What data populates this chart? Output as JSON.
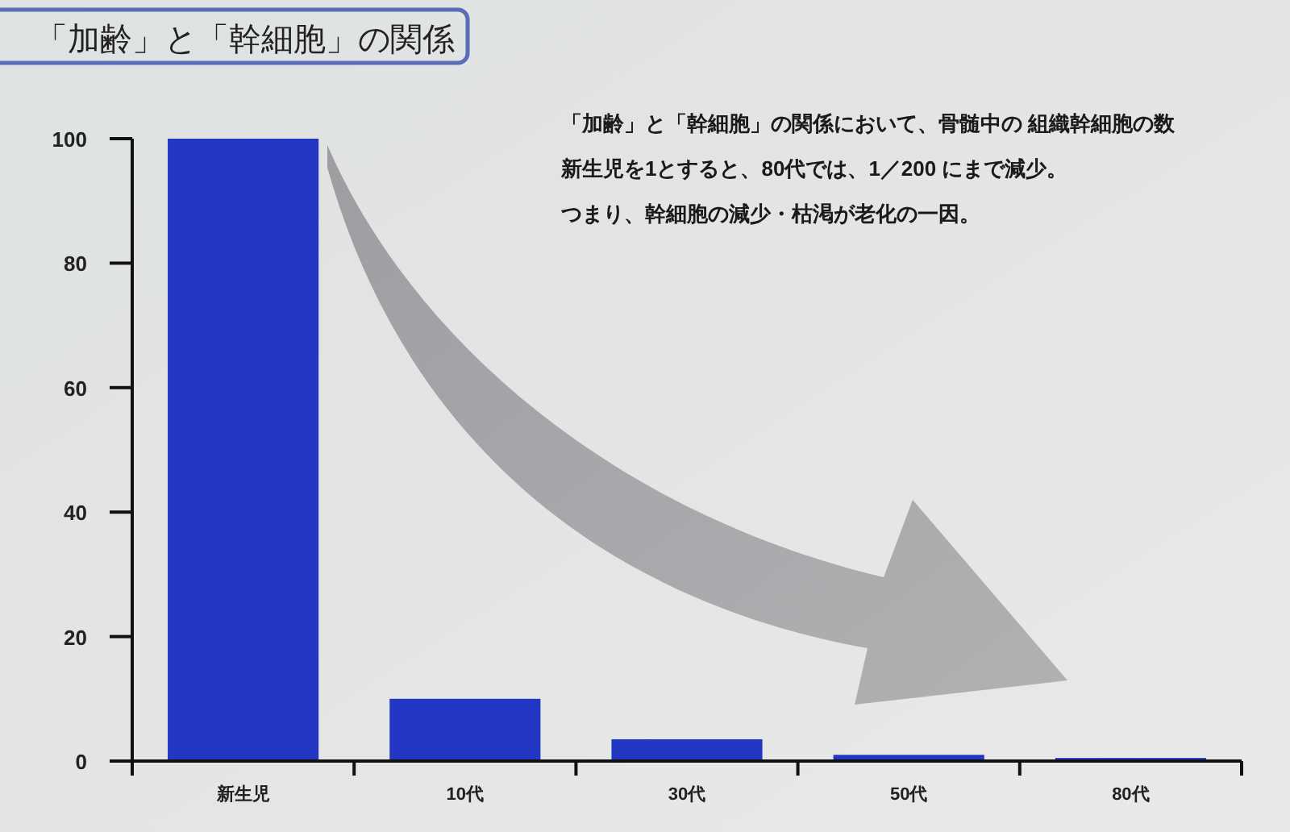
{
  "chart_data": {
    "type": "bar",
    "title": "「加齢」と「幹細胞」の関係",
    "categories": [
      "新生児",
      "10代",
      "30代",
      "50代",
      "80代"
    ],
    "values": [
      100,
      10,
      3.5,
      1,
      0.5
    ],
    "color": "#2238c4",
    "ylim": [
      0,
      100
    ],
    "yticks": [
      0,
      20,
      40,
      60,
      80,
      100
    ],
    "annotations": [
      "「加齢」と「幹細胞」の関係において、骨髄中の 組織幹細胞の数",
      "新生児を1とすると、80代では、1／200 にまで減少。",
      "つまり、幹細胞の減少・枯渇が老化の一因。"
    ]
  }
}
